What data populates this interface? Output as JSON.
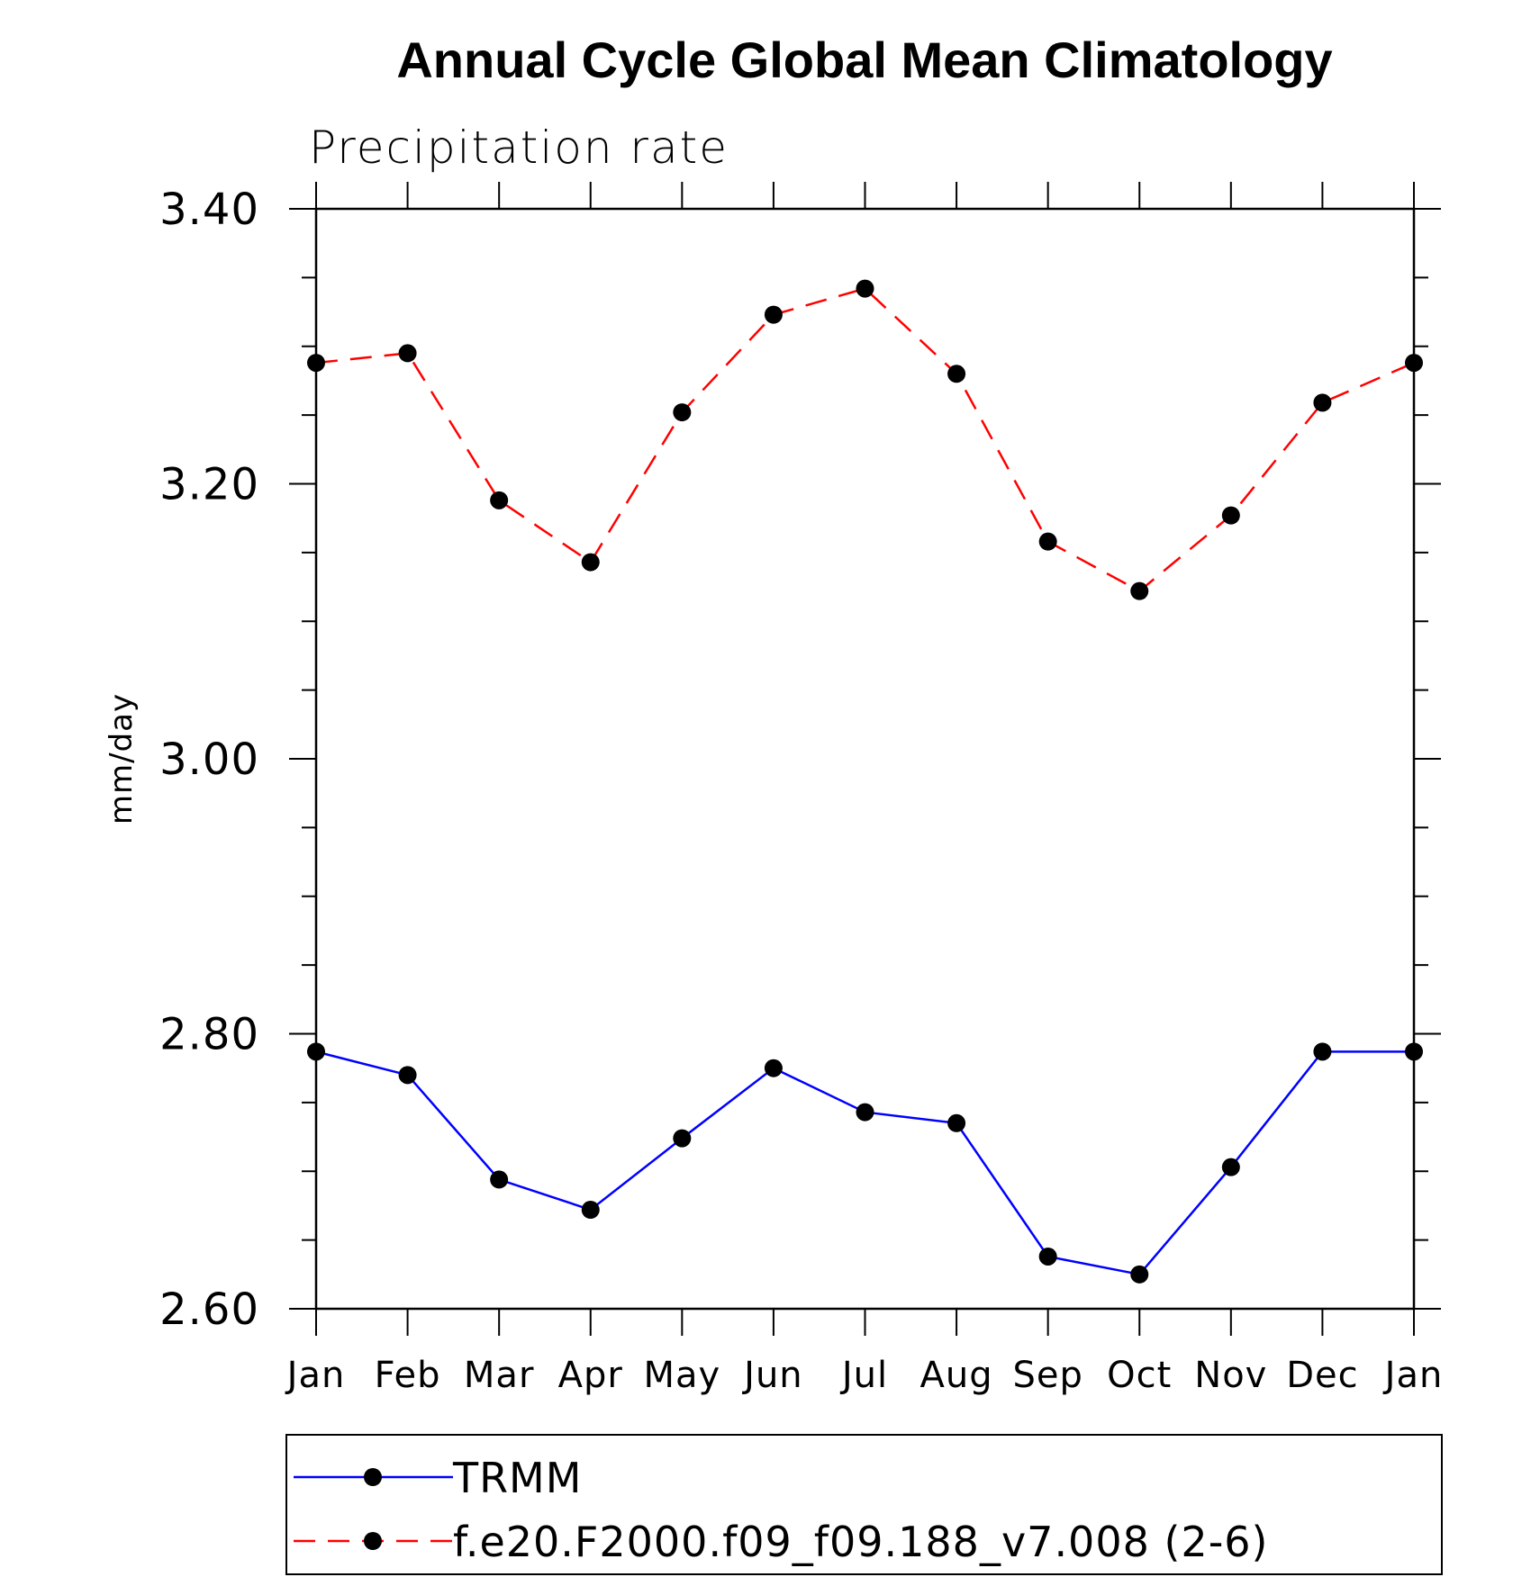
{
  "chart_data": {
    "type": "line",
    "title": "Annual Cycle Global Mean Climatology",
    "subtitle": "Precipitation rate",
    "ylabel": "mm/day",
    "xlabel": "",
    "categories": [
      "Jan",
      "Feb",
      "Mar",
      "Apr",
      "May",
      "Jun",
      "Jul",
      "Aug",
      "Sep",
      "Oct",
      "Nov",
      "Dec",
      "Jan"
    ],
    "ylim": [
      2.6,
      3.4
    ],
    "yticks": [
      "2.60",
      "2.80",
      "3.00",
      "3.20",
      "3.40"
    ],
    "grid": false,
    "legend_position": "bottom",
    "series": [
      {
        "name": "TRMM",
        "color": "#0000ff",
        "dash": "solid",
        "marker": "filled-circle",
        "values": [
          2.787,
          2.77,
          2.694,
          2.672,
          2.724,
          2.775,
          2.743,
          2.735,
          2.638,
          2.625,
          2.703,
          2.787,
          2.787
        ]
      },
      {
        "name": "f.e20.F2000.f09_f09.188_v7.008 (2-6)",
        "color": "#ff0000",
        "dash": "dashed",
        "marker": "filled-circle",
        "values": [
          3.288,
          3.295,
          3.188,
          3.143,
          3.252,
          3.323,
          3.342,
          3.28,
          3.158,
          3.122,
          3.177,
          3.259,
          3.288
        ]
      }
    ]
  }
}
